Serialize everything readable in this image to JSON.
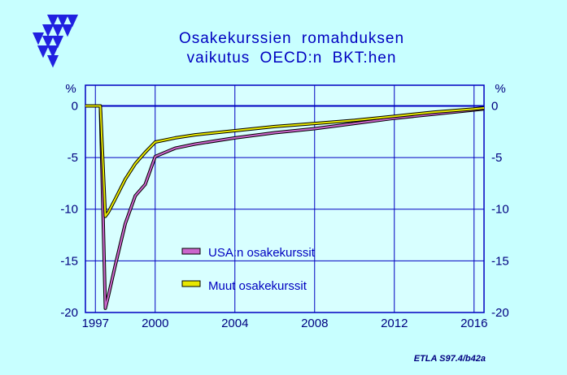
{
  "header": {
    "title_line1": "Osakekurssien  romahduksen",
    "title_line2": "vaikutus  OECD:n  BKT:hen",
    "source_note": "ETLA S97.4/b42a"
  },
  "colors": {
    "background": "#c8ffff",
    "plot_background": "#d8ffff",
    "axis_blue": "#0000c0",
    "series_usa": "#cc66cc",
    "series_muut": "#e8e800",
    "logo": "#2020e0"
  },
  "icons": {
    "logo": "etla-logo-icon"
  },
  "chart_data": {
    "type": "line",
    "title": "Osakekurssien  romahduksen vaikutus  OECD:n  BKT:hen",
    "ylabel_left": "%",
    "ylabel_right": "%",
    "xlim": [
      1996.5,
      2016.5
    ],
    "ylim": [
      -20,
      2
    ],
    "x_ticks": [
      "1997",
      "2000",
      "2004",
      "2008",
      "2012",
      "2016"
    ],
    "x_tick_values": [
      1997,
      2000,
      2004,
      2008,
      2012,
      2016
    ],
    "y_ticks": [
      "0",
      "-5",
      "-10",
      "-15",
      "-20"
    ],
    "y_tick_values": [
      0,
      -5,
      -10,
      -15,
      -20
    ],
    "grid": true,
    "legend_position": "center",
    "series": [
      {
        "name": "USA:n osakekurssit",
        "color": "#cc66cc",
        "x": [
          1996.5,
          1997.25,
          1997.5,
          1997.65,
          1998,
          1998.5,
          1999,
          1999.5,
          2000,
          2001,
          2002,
          2004,
          2006,
          2008,
          2010,
          2012,
          2014,
          2016,
          2016.5
        ],
        "y": [
          0,
          0,
          -19.6,
          -18.4,
          -15.4,
          -11.4,
          -8.7,
          -7.6,
          -4.9,
          -4.1,
          -3.7,
          -3.1,
          -2.6,
          -2.2,
          -1.7,
          -1.2,
          -0.8,
          -0.4,
          -0.3
        ]
      },
      {
        "name": "Muut osakekurssit",
        "color": "#e8e800",
        "x": [
          1996.5,
          1997.25,
          1997.5,
          1997.65,
          1998,
          1998.5,
          1999,
          1999.5,
          2000,
          2001,
          2002,
          2004,
          2006,
          2008,
          2010,
          2012,
          2014,
          2016,
          2016.5
        ],
        "y": [
          0,
          0,
          -10.7,
          -10.3,
          -9.0,
          -7.1,
          -5.6,
          -4.5,
          -3.5,
          -3.1,
          -2.8,
          -2.4,
          -2.0,
          -1.7,
          -1.4,
          -1.0,
          -0.6,
          -0.3,
          -0.2
        ]
      }
    ]
  }
}
